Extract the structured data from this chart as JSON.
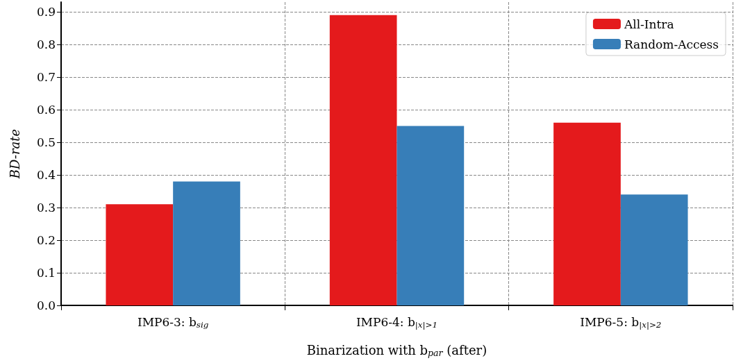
{
  "chart_data": {
    "type": "bar",
    "xlabel": "Binarization with b$_{par}$ (after)",
    "ylabel": "BD-rate",
    "categories": [
      "IMP6-3: b$_{sig}$",
      "IMP6-4: b$_{|x|>1}$",
      "IMP6-5: b$_{|x|>2}$"
    ],
    "series": [
      {
        "name": "All-Intra",
        "color": "#e41a1c",
        "values": [
          0.31,
          0.89,
          0.56
        ]
      },
      {
        "name": "Random-Access",
        "color": "#377eb8",
        "values": [
          0.38,
          0.55,
          0.34
        ]
      }
    ],
    "ylim": [
      0,
      0.93
    ],
    "yticks": [
      {
        "value": 0,
        "label": "0.0"
      },
      0.1,
      0.2,
      0.3,
      0.4,
      0.5,
      0.6,
      0.7,
      0.8,
      0.9
    ],
    "grid": true,
    "legend": "top right"
  }
}
